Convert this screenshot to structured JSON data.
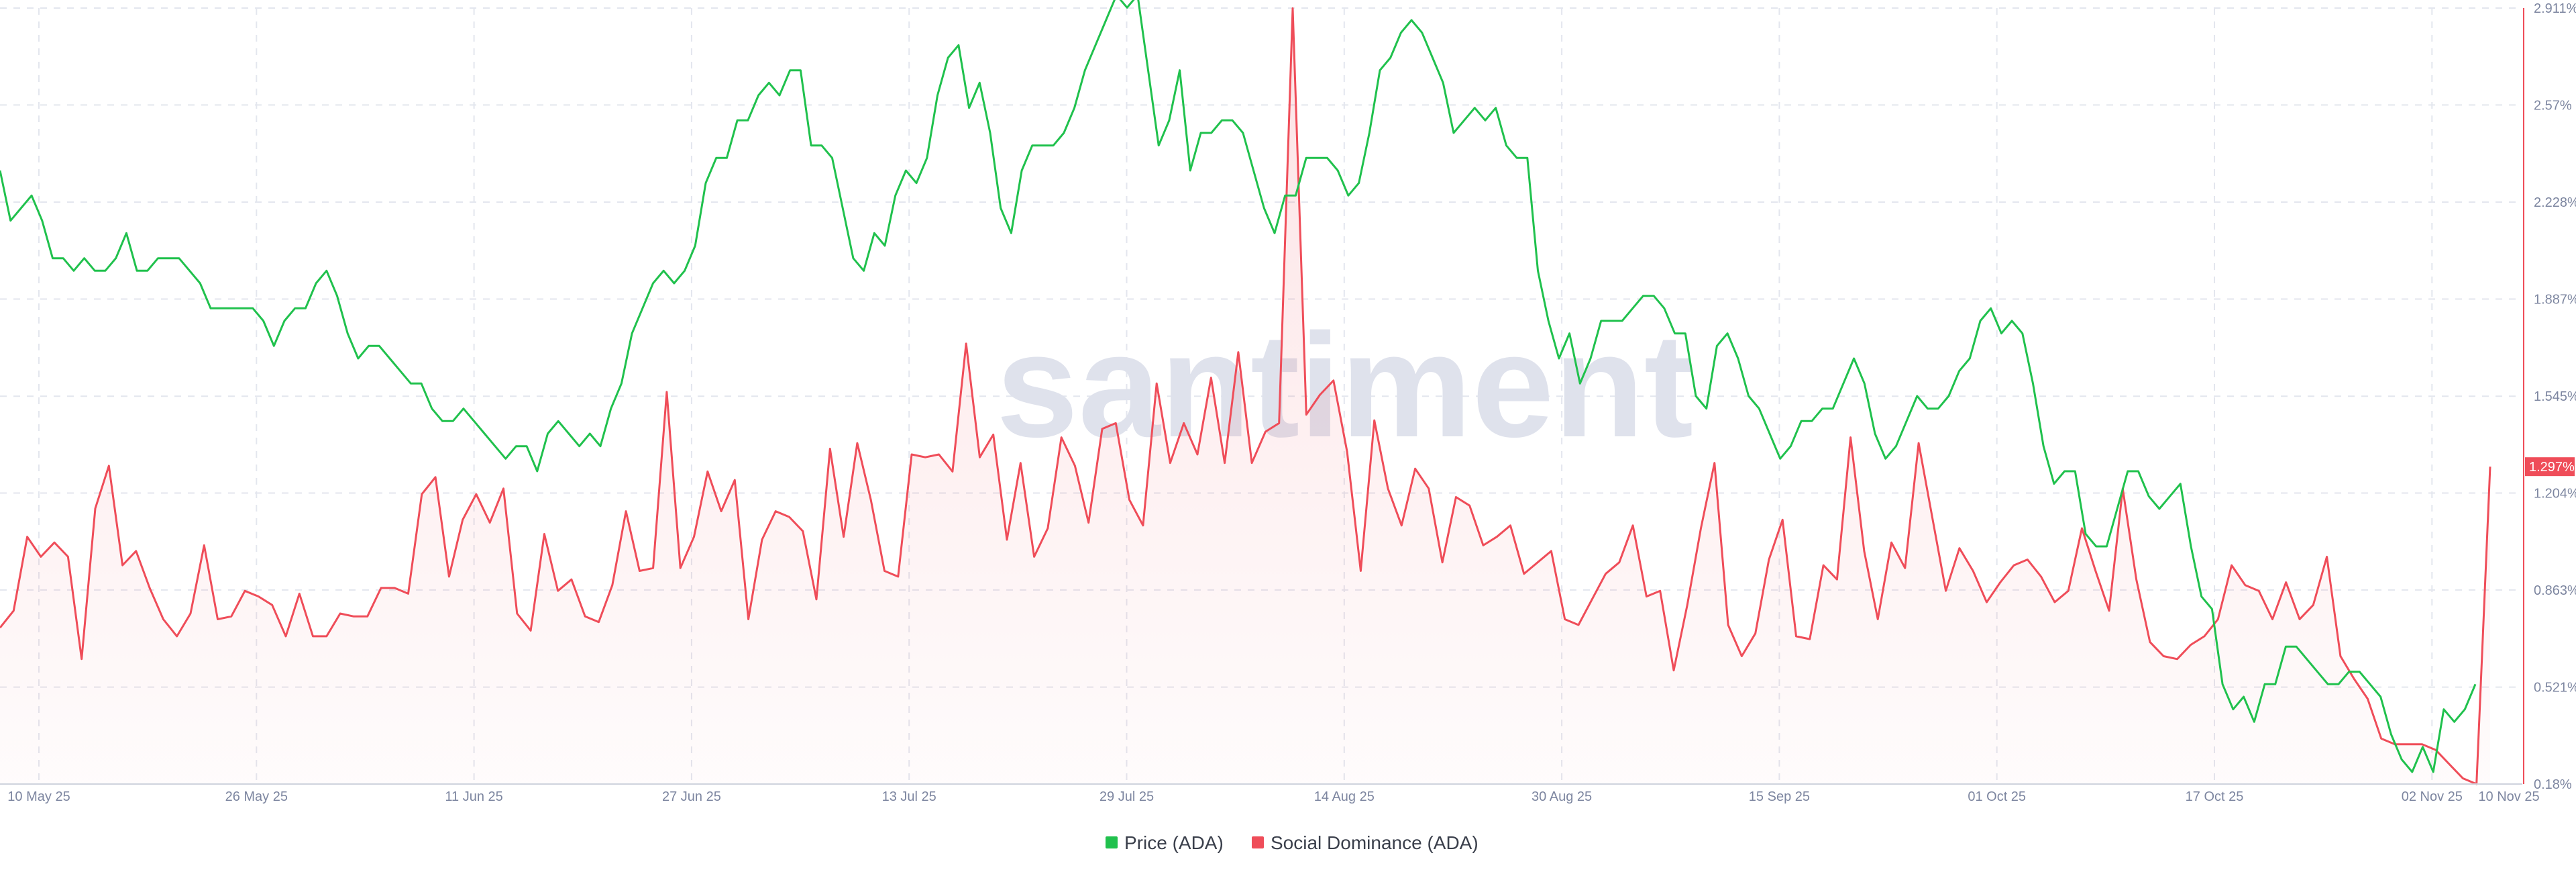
{
  "chart_data": {
    "type": "line",
    "watermark": "santiment",
    "x_ticks": [
      "10 May 25",
      "26 May 25",
      "11 Jun 25",
      "27 Jun 25",
      "13 Jul 25",
      "29 Jul 25",
      "14 Aug 25",
      "30 Aug 25",
      "15 Sep 25",
      "01 Oct 25",
      "17 Oct 25",
      "02 Nov 25",
      "10 Nov 25"
    ],
    "y_right": {
      "ticks": [
        "0.18%",
        "0.521%",
        "0.863%",
        "1.204%",
        "1.545%",
        "1.887%",
        "2.228%",
        "2.57%",
        "2.911%"
      ],
      "tick_values": [
        0.18,
        0.521,
        0.863,
        1.204,
        1.545,
        1.887,
        2.228,
        2.57,
        2.911
      ],
      "range": [
        0.18,
        2.911
      ]
    },
    "current_value_label": "1.297%",
    "current_value_color": "#ef4d59",
    "grid": true,
    "legend_position": "bottom-center",
    "series": [
      {
        "name": "Price (ADA)",
        "color": "#20c14d",
        "axis": "hidden",
        "values": [
          0.78,
          0.74,
          0.75,
          0.76,
          0.74,
          0.71,
          0.71,
          0.7,
          0.71,
          0.7,
          0.7,
          0.71,
          0.73,
          0.7,
          0.7,
          0.71,
          0.71,
          0.71,
          0.7,
          0.69,
          0.67,
          0.67,
          0.67,
          0.67,
          0.67,
          0.66,
          0.64,
          0.66,
          0.67,
          0.67,
          0.69,
          0.7,
          0.68,
          0.65,
          0.63,
          0.64,
          0.64,
          0.63,
          0.62,
          0.61,
          0.61,
          0.59,
          0.58,
          0.58,
          0.59,
          0.58,
          0.57,
          0.56,
          0.55,
          0.56,
          0.56,
          0.54,
          0.57,
          0.58,
          0.57,
          0.56,
          0.57,
          0.56,
          0.59,
          0.61,
          0.65,
          0.67,
          0.69,
          0.7,
          0.69,
          0.7,
          0.72,
          0.77,
          0.79,
          0.79,
          0.82,
          0.82,
          0.84,
          0.85,
          0.84,
          0.86,
          0.86,
          0.8,
          0.8,
          0.79,
          0.75,
          0.71,
          0.7,
          0.73,
          0.72,
          0.76,
          0.78,
          0.77,
          0.79,
          0.84,
          0.87,
          0.88,
          0.83,
          0.85,
          0.81,
          0.75,
          0.73,
          0.78,
          0.8,
          0.8,
          0.8,
          0.81,
          0.83,
          0.86,
          0.88,
          0.9,
          0.92,
          0.91,
          0.92,
          0.86,
          0.8,
          0.82,
          0.86,
          0.78,
          0.81,
          0.81,
          0.82,
          0.82,
          0.81,
          0.78,
          0.75,
          0.73,
          0.76,
          0.76,
          0.79,
          0.79,
          0.79,
          0.78,
          0.76,
          0.77,
          0.81,
          0.86,
          0.87,
          0.89,
          0.9,
          0.89,
          0.87,
          0.85,
          0.81,
          0.82,
          0.83,
          0.82,
          0.83,
          0.8,
          0.79,
          0.79,
          0.7,
          0.66,
          0.63,
          0.65,
          0.61,
          0.63,
          0.66,
          0.66,
          0.66,
          0.67,
          0.68,
          0.68,
          0.67,
          0.65,
          0.65,
          0.6,
          0.59,
          0.64,
          0.65,
          0.63,
          0.6,
          0.59,
          0.57,
          0.55,
          0.56,
          0.58,
          0.58,
          0.59,
          0.59,
          0.61,
          0.63,
          0.61,
          0.57,
          0.55,
          0.56,
          0.58,
          0.6,
          0.59,
          0.59,
          0.6,
          0.62,
          0.63,
          0.66,
          0.67,
          0.65,
          0.66,
          0.65,
          0.61,
          0.56,
          0.53,
          0.54,
          0.54,
          0.49,
          0.48,
          0.48,
          0.51,
          0.54,
          0.54,
          0.52,
          0.51,
          0.52,
          0.53,
          0.48,
          0.44,
          0.43,
          0.37,
          0.35,
          0.36,
          0.34,
          0.37,
          0.37,
          0.4,
          0.4,
          0.39,
          0.38,
          0.37,
          0.37,
          0.38,
          0.38,
          0.37,
          0.36,
          0.33,
          0.31,
          0.3,
          0.32,
          0.3,
          0.35,
          0.34,
          0.35,
          0.37
        ]
      },
      {
        "name": "Social Dominance (ADA)",
        "color": "#ef4d59",
        "axis": "right",
        "fill": true,
        "values": [
          0.73,
          0.79,
          1.05,
          0.98,
          1.03,
          0.98,
          0.62,
          1.15,
          1.3,
          0.95,
          1.0,
          0.87,
          0.76,
          0.7,
          0.78,
          1.02,
          0.76,
          0.77,
          0.86,
          0.84,
          0.81,
          0.7,
          0.85,
          0.7,
          0.7,
          0.78,
          0.77,
          0.77,
          0.87,
          0.87,
          0.85,
          1.2,
          1.26,
          0.91,
          1.11,
          1.2,
          1.1,
          1.22,
          0.78,
          0.72,
          1.06,
          0.86,
          0.9,
          0.77,
          0.75,
          0.88,
          1.14,
          0.93,
          0.94,
          1.56,
          0.94,
          1.05,
          1.28,
          1.14,
          1.25,
          0.76,
          1.04,
          1.14,
          1.12,
          1.07,
          0.83,
          1.36,
          1.05,
          1.38,
          1.18,
          0.93,
          0.91,
          1.34,
          1.33,
          1.34,
          1.28,
          1.73,
          1.33,
          1.41,
          1.04,
          1.31,
          0.98,
          1.08,
          1.4,
          1.3,
          1.1,
          1.43,
          1.45,
          1.18,
          1.09,
          1.59,
          1.31,
          1.45,
          1.34,
          1.61,
          1.31,
          1.7,
          1.31,
          1.42,
          1.45,
          2.91,
          1.48,
          1.55,
          1.6,
          1.35,
          0.93,
          1.46,
          1.22,
          1.09,
          1.29,
          1.22,
          0.96,
          1.19,
          1.16,
          1.02,
          1.05,
          1.09,
          0.92,
          0.96,
          1.0,
          0.76,
          0.74,
          0.83,
          0.92,
          0.96,
          1.09,
          0.84,
          0.86,
          0.58,
          0.81,
          1.08,
          1.31,
          0.74,
          0.63,
          0.71,
          0.97,
          1.11,
          0.7,
          0.69,
          0.95,
          0.9,
          1.4,
          1.0,
          0.76,
          1.03,
          0.94,
          1.38,
          1.12,
          0.86,
          1.01,
          0.93,
          0.82,
          0.89,
          0.95,
          0.97,
          0.91,
          0.82,
          0.86,
          1.08,
          0.93,
          0.79,
          1.22,
          0.9,
          0.68,
          0.63,
          0.62,
          0.67,
          0.7,
          0.76,
          0.95,
          0.88,
          0.86,
          0.76,
          0.89,
          0.76,
          0.81,
          0.98,
          0.63,
          0.55,
          0.48,
          0.34,
          0.32,
          0.32,
          0.32,
          0.3,
          0.25,
          0.2,
          0.18,
          1.297
        ]
      }
    ]
  }
}
